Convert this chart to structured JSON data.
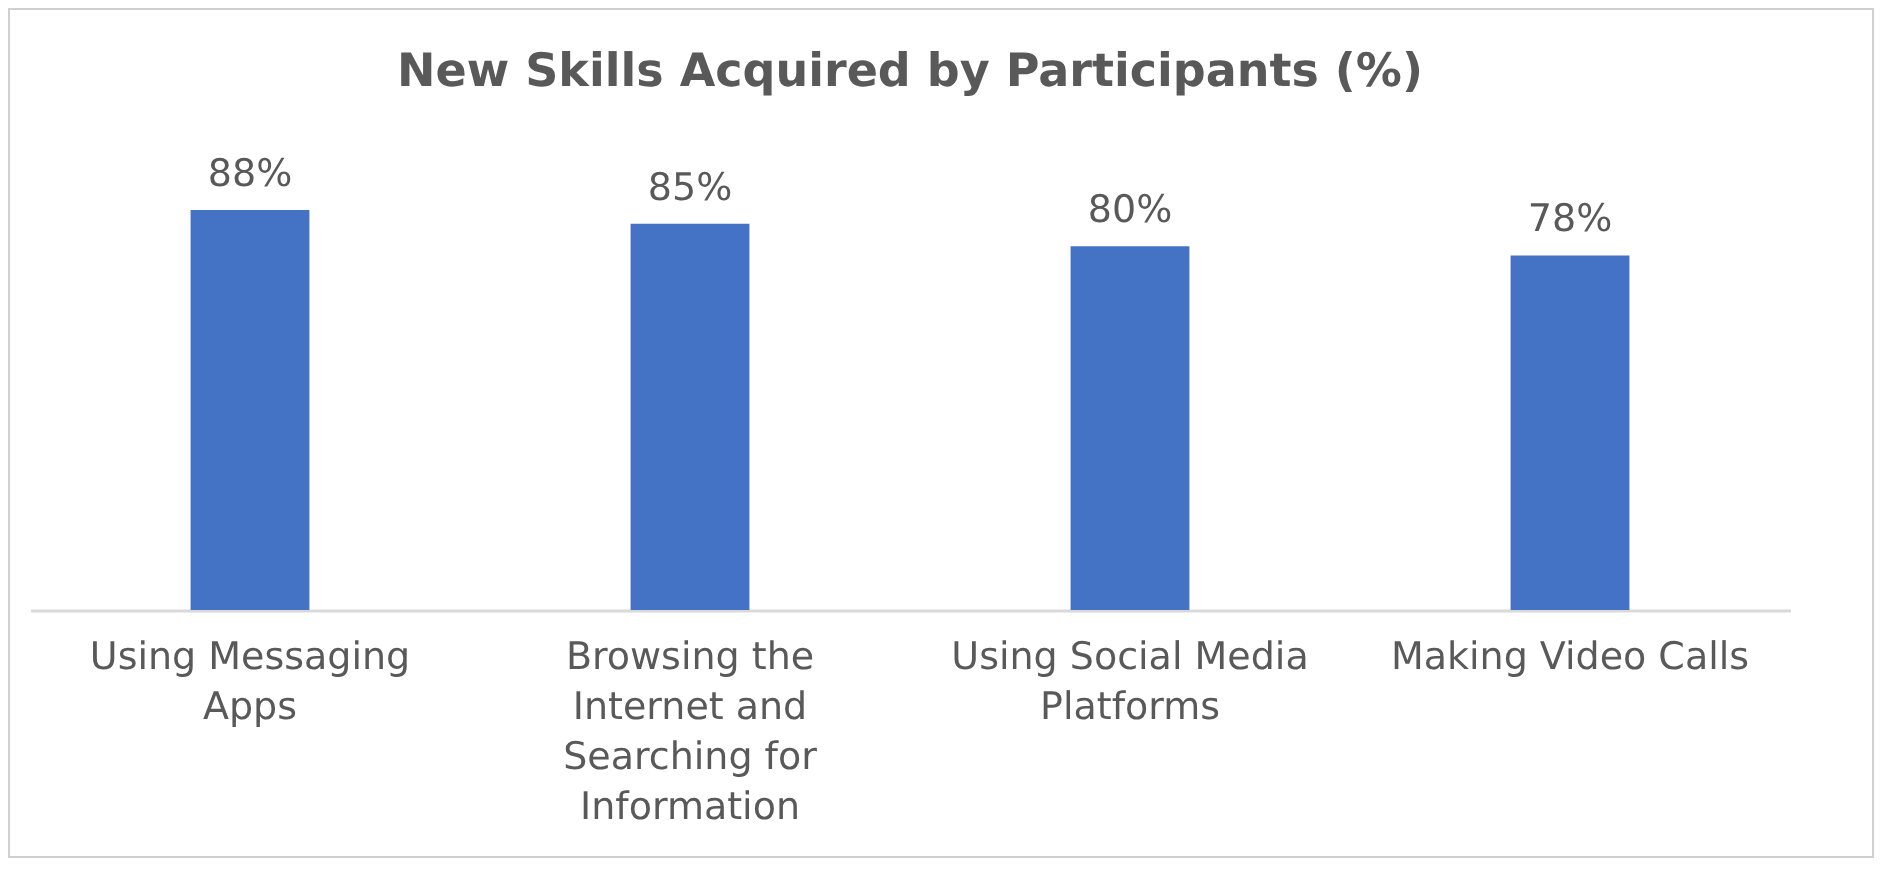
{
  "chart_data": {
    "type": "bar",
    "title": "New Skills Acquired by Participants (%)",
    "categories": [
      "Using Messaging Apps",
      "Browsing the Internet and Searching for Information",
      "Using Social Media Platforms",
      "Making Video Calls"
    ],
    "values": [
      88,
      85,
      80,
      78
    ],
    "value_labels": [
      "88%",
      "85%",
      "80%",
      "78%"
    ],
    "color": "#4472c4",
    "tick_labels": "x"
  }
}
